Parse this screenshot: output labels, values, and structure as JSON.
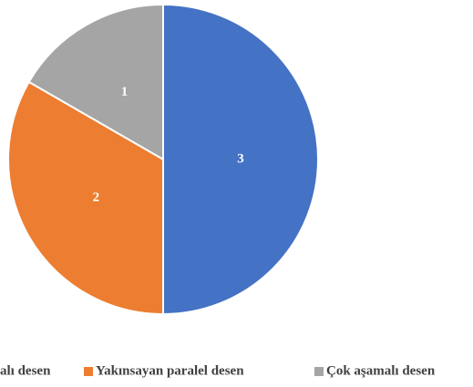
{
  "chart_data": {
    "type": "pie",
    "categories": [
      "alı desen",
      "Yakınsayan paralel desen",
      "Çok aşamalı desen"
    ],
    "values": [
      3,
      2,
      1
    ],
    "colors": [
      "#4472c4",
      "#ed7d31",
      "#a5a5a5"
    ]
  }
}
